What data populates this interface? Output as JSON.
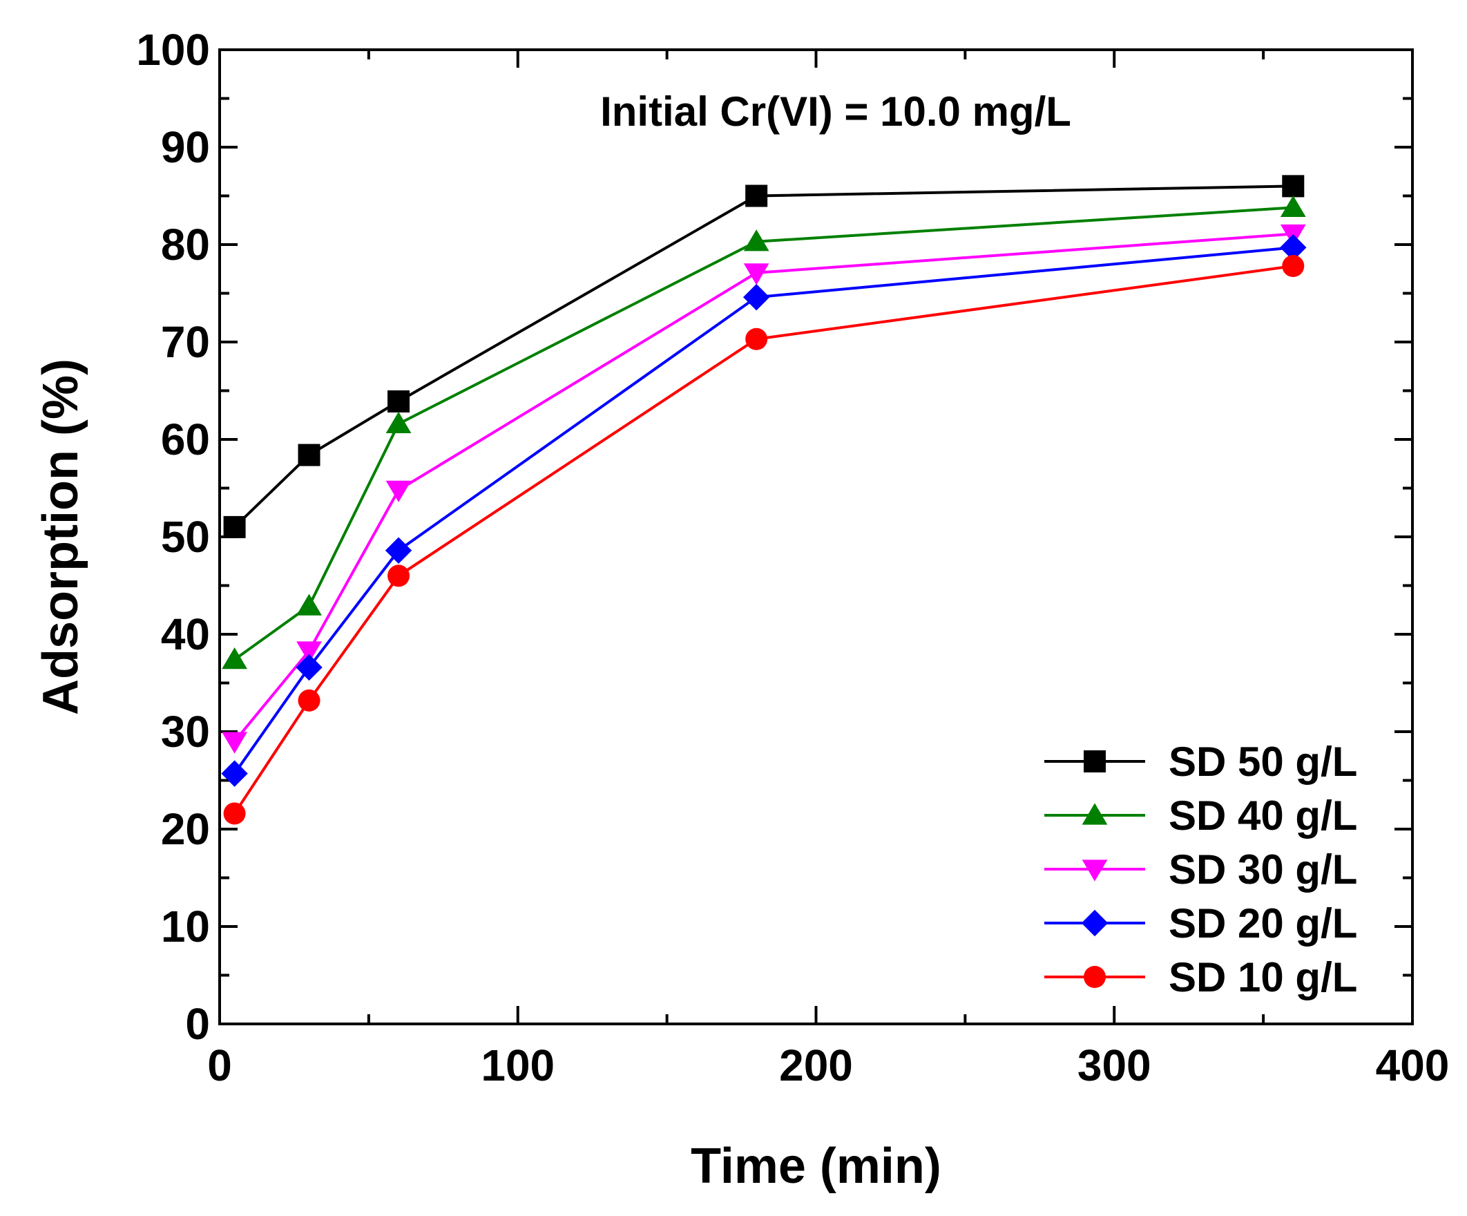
{
  "chart_data": {
    "type": "line",
    "title": "",
    "annotation": "Initial Cr(VI) = 10.0 mg/L",
    "xlabel": "Time (min)",
    "ylabel": "Adsorption (%)",
    "xlim": [
      0,
      400
    ],
    "ylim": [
      0,
      100
    ],
    "xticks": [
      0,
      100,
      200,
      300,
      400
    ],
    "yticks": [
      0,
      10,
      20,
      30,
      40,
      50,
      60,
      70,
      80,
      90,
      100
    ],
    "x_minor_step": 50,
    "y_minor_step": 5,
    "grid": false,
    "legend_position": "bottom-right",
    "x": [
      5,
      30,
      60,
      180,
      360
    ],
    "series": [
      {
        "name": "SD 50 g/L",
        "color": "#000000",
        "marker": "square",
        "values": [
          51.0,
          58.4,
          63.9,
          85.0,
          86.0
        ]
      },
      {
        "name": "SD 40 g/L",
        "color": "#008000",
        "marker": "triangle-up",
        "values": [
          37.4,
          42.9,
          61.6,
          80.3,
          83.8
        ]
      },
      {
        "name": "SD 30 g/L",
        "color": "#ff00ff",
        "marker": "triangle-down",
        "values": [
          29.0,
          38.3,
          54.8,
          77.1,
          81.1
        ]
      },
      {
        "name": "SD 20 g/L",
        "color": "#0000ff",
        "marker": "diamond",
        "values": [
          25.7,
          36.6,
          48.6,
          74.6,
          79.7
        ]
      },
      {
        "name": "SD 10 g/L",
        "color": "#ff0000",
        "marker": "circle",
        "values": [
          21.6,
          33.2,
          46.0,
          70.3,
          77.8
        ]
      }
    ]
  }
}
